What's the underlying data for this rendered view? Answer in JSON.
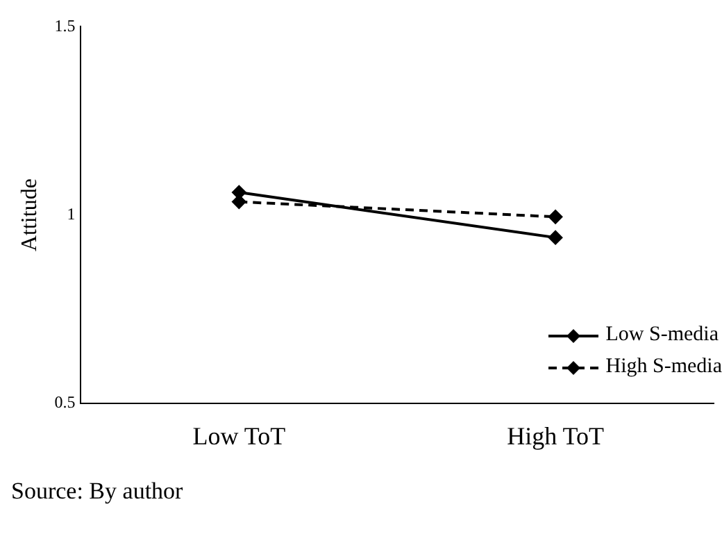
{
  "chart_data": {
    "type": "line",
    "ylabel": "Attitude",
    "categories": [
      "Low ToT",
      "High ToT"
    ],
    "series": [
      {
        "name": "Low S-media",
        "color": "#000000",
        "values": [
          1.06,
          0.94
        ],
        "line_style": "solid"
      },
      {
        "name": "High S-media",
        "color": "#000000",
        "values": [
          1.035,
          0.995
        ],
        "line_style": "dashed"
      }
    ],
    "ylim": [
      0.5,
      1.5
    ],
    "yticks": [
      0.5,
      1,
      1.5
    ],
    "grid": false,
    "marker": "diamond",
    "legend": "bottom right",
    "annotations": [
      "Source: By author"
    ]
  }
}
